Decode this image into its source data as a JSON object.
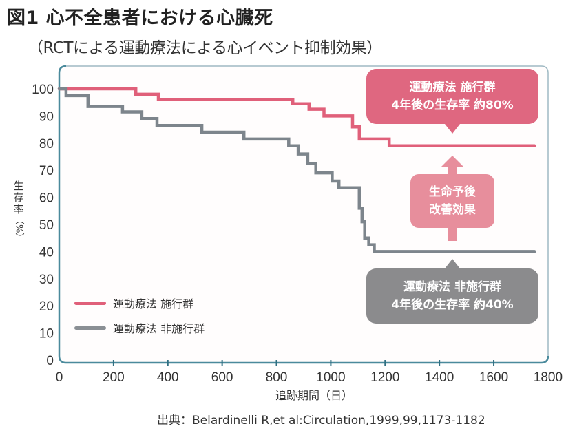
{
  "title": "図1 心不全患者における心臓死",
  "subtitle": "（RCTによる運動療法による心イベント抑制効果）",
  "source": "出典：Belardinelli R,et al:Circulation,1999,99,1173-1182",
  "colors": {
    "treatment": "#e0607a",
    "control": "#7d858c",
    "axis": "#4a8a9c",
    "grid": "#c9dbe4"
  },
  "callouts": {
    "treatment": {
      "line1": "運動療法 施行群",
      "line2": "4年後の生存率  約80%"
    },
    "control": {
      "line1": "運動療法 非施行群",
      "line2": "4年後の生存率  約40%"
    },
    "effect": {
      "line1": "生命予後",
      "line2": "改善効果"
    }
  },
  "chart_data": {
    "type": "line",
    "step": true,
    "title": "図1 心不全患者における心臓死",
    "subtitle": "（RCTによる運動療法による心イベント抑制効果）",
    "xlabel": "追跡期間（日）",
    "ylabel_chars": [
      "生",
      "存",
      "率",
      "（%）"
    ],
    "xlim": [
      0,
      1800
    ],
    "ylim": [
      0,
      100
    ],
    "xticks": [
      "0",
      "200",
      "400",
      "600",
      "800",
      "1000",
      "1200",
      "1400",
      "1600",
      "1800"
    ],
    "yticks": [
      "0",
      "10",
      "20",
      "30",
      "40",
      "50",
      "60",
      "70",
      "80",
      "90",
      "100"
    ],
    "grid": true,
    "legend": "bottom-left",
    "series": [
      {
        "name": "運動療法 施行群",
        "x": [
          0,
          282,
          282,
          365,
          365,
          860,
          860,
          920,
          920,
          975,
          975,
          1080,
          1080,
          1105,
          1105,
          1215,
          1215,
          1750
        ],
        "y": [
          100,
          100,
          98,
          98,
          96,
          96,
          94.5,
          94.5,
          92.5,
          92.5,
          90,
          90,
          86,
          86,
          81.5,
          81.5,
          79,
          79
        ]
      },
      {
        "name": "運動療法 非施行群",
        "x": [
          0,
          25,
          25,
          106,
          106,
          233,
          233,
          304,
          304,
          360,
          360,
          525,
          525,
          680,
          680,
          845,
          845,
          880,
          880,
          915,
          915,
          945,
          945,
          1005,
          1005,
          1030,
          1030,
          1105,
          1105,
          1115,
          1115,
          1125,
          1125,
          1140,
          1140,
          1160,
          1160,
          1750
        ],
        "y": [
          100,
          100,
          97.5,
          97.5,
          93.5,
          93.5,
          91.5,
          91.5,
          89,
          89,
          86.5,
          86.5,
          84,
          84,
          81.5,
          81.5,
          79,
          79,
          76,
          76,
          72.5,
          72.5,
          69,
          69,
          66,
          66,
          63.5,
          63.5,
          56,
          56,
          51,
          51,
          45,
          45,
          42.5,
          42.5,
          40,
          40
        ]
      }
    ]
  }
}
